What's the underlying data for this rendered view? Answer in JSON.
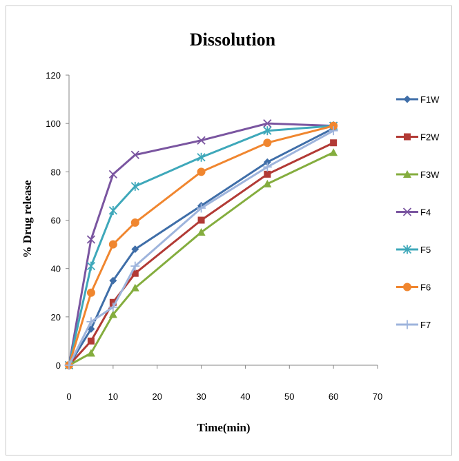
{
  "chart_data": {
    "type": "line",
    "title": "Dissolution",
    "xlabel": "Time(min)",
    "ylabel": "% Drug  release",
    "xlim": [
      0,
      70
    ],
    "ylim": [
      0,
      120
    ],
    "xticks": [
      0,
      10,
      20,
      30,
      40,
      50,
      60,
      70
    ],
    "yticks": [
      0,
      20,
      40,
      60,
      80,
      100,
      120
    ],
    "grid": false,
    "legend_position": "right",
    "x": [
      0,
      5,
      10,
      15,
      30,
      45,
      60
    ],
    "series": [
      {
        "name": "F1W",
        "color": "#3f6ea8",
        "marker": "diamond",
        "values": [
          0,
          15,
          35,
          48,
          66,
          84,
          98
        ]
      },
      {
        "name": "F2W",
        "color": "#b23a35",
        "marker": "square",
        "values": [
          0,
          10,
          26,
          38,
          60,
          79,
          92
        ]
      },
      {
        "name": "F3W",
        "color": "#84ad3e",
        "marker": "triangle",
        "values": [
          0,
          5,
          21,
          32,
          55,
          75,
          88
        ]
      },
      {
        "name": "F4",
        "color": "#7a55a0",
        "marker": "x",
        "values": [
          0,
          52,
          79,
          87,
          93,
          100,
          99
        ]
      },
      {
        "name": "F5",
        "color": "#3ea8ba",
        "marker": "asterisk",
        "values": [
          0,
          41,
          64,
          74,
          86,
          97,
          99
        ]
      },
      {
        "name": "F6",
        "color": "#f0862f",
        "marker": "circle",
        "values": [
          0,
          30,
          50,
          59,
          80,
          92,
          99
        ]
      },
      {
        "name": "F7",
        "color": "#9eb4dc",
        "marker": "plus",
        "values": [
          0,
          18,
          24,
          41,
          65,
          82,
          97
        ]
      }
    ]
  }
}
